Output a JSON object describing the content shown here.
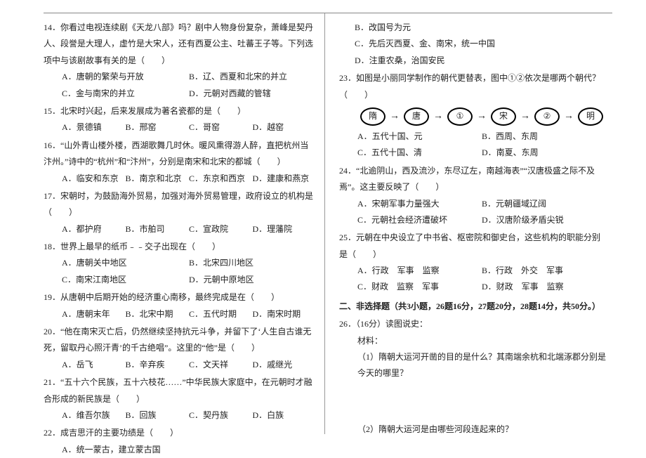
{
  "colors": {
    "text": "#222222",
    "rule": "#888888",
    "bg": "#ffffff"
  },
  "typography": {
    "base_fontsize_pt": 9,
    "line_height": 1.95,
    "font_family": "SimSun"
  },
  "left": {
    "q14": {
      "num": "14．",
      "stem": "你看过电视连续剧《天龙八部》吗？剧中人物身份复杂，萧峰是契丹人、段誉是大理人，虚竹是大宋人，还有西夏公主、吐蕃王子等。下列选项中与该剧故事有关的是（　　）",
      "opts": {
        "A": "唐朝的繁荣与开放",
        "B": "辽、西夏和北宋的并立",
        "C": "金与南宋的并立",
        "D": "元朝对西藏的管辖"
      }
    },
    "q15": {
      "num": "15．",
      "stem": "北宋时兴起，后来发展成为著名瓷都的是（　　）",
      "opts": {
        "A": "景德镇",
        "B": "邢窑",
        "C": "哥窑",
        "D": "越窑"
      }
    },
    "q16": {
      "num": "16．",
      "stem": "“山外青山楼外楼，西湖歌舞几时休。暖风熏得游人醉，直把杭州当汴州。”诗中的“杭州”和“汴州”，分别是南宋和北宋的都城（　　）",
      "opts": {
        "A": "临安和东京",
        "B": "南京和北京",
        "C": "东京和西京",
        "D": "建康和燕京"
      }
    },
    "q17": {
      "num": "17．",
      "stem": "宋朝时，为鼓励海外贸易，加强对海外贸易管理，政府设立的机构是（　　）",
      "opts": {
        "A": "都护府",
        "B": "市舶司",
        "C": "宣政院",
        "D": "理藩院"
      }
    },
    "q18": {
      "num": "18．",
      "stem": "世界上最早的纸币﹣﹣交子出现在（　　）",
      "opts": {
        "A": "唐朝关中地区",
        "B": "北宋四川地区",
        "C": "南宋江南地区",
        "D": "元朝中原地区"
      }
    },
    "q19": {
      "num": "19．",
      "stem": "从唐朝中后期开始的经济重心南移，最终完成是在（　　）",
      "opts": {
        "A": "唐朝末年",
        "B": "北宋中期",
        "C": "五代时期",
        "D": "南宋时期"
      }
    },
    "q20": {
      "num": "20．",
      "stem": "“他在南宋灭亡后，仍然继续坚持抗元斗争，并留下了‘人生自古谁无死，留取丹心照汗青’的千古绝唱”。这里的“他”是（　　）",
      "opts": {
        "A": "岳飞",
        "B": "辛弃疾",
        "C": "文天祥",
        "D": "戚继光"
      }
    },
    "q21": {
      "num": "21．",
      "stem": "“五十六个民族，五十六枝花……”中华民族大家庭中，在元朝时才融合形成的新民族是（　　）",
      "opts": {
        "A": "维吾尔族",
        "B": "回族",
        "C": "契丹族",
        "D": "白族"
      }
    },
    "q22": {
      "num": "22．",
      "stem": "成吉思汗的主要功绩是（　　）",
      "optA": "统一蒙古，建立蒙古国"
    }
  },
  "right": {
    "q22_rest": {
      "B": "改国号为元",
      "C": "先后灭西夏、金、南宋，统一中国",
      "D": "注重农桑，治国安民"
    },
    "q23": {
      "num": "23．",
      "stem": "如图是小丽同学制作的朝代更替表，图中①②依次是哪两个朝代？（　　）",
      "flow": [
        "隋",
        "唐",
        "①",
        "宋",
        "②",
        "明"
      ],
      "opts": {
        "A": "五代十国、元",
        "B": "西周、东周",
        "C": "五代十国、清",
        "D": "南夏、东周"
      }
    },
    "q24": {
      "num": "24．",
      "stem": "“北逾阴山，西及流沙，东尽辽左，南越海表”“汉唐极盛之际不及焉”。这主要反映了（　　）",
      "opts": {
        "A": "宋朝军事力量强大",
        "B": "元朝疆域辽阔",
        "C": "元朝社会经济遭破坏",
        "D": "汉唐阶级矛盾尖锐"
      }
    },
    "q25": {
      "num": "25．",
      "stem": "元朝在中央设立了中书省、枢密院和御史台，这些机构的职能分别是（　　）",
      "opts": {
        "A": "行政　军事　监察",
        "B": "行政　外交　军事",
        "C": "财政　监察　军事",
        "D": "财政　军事　监察"
      }
    },
    "section2": "二、非选择题（共3小题，26题16分，27题20分，28题14分，共50分。）",
    "q26": {
      "num": "26．",
      "stem": "（16分）读图说史：",
      "mat": "材料：",
      "sub1": "（1）隋朝大运河开凿的目的是什么？其南端余杭和北端涿郡分别是今天的哪里？",
      "sub2": "（2）隋朝大运河是由哪些河段连起来的？"
    }
  }
}
